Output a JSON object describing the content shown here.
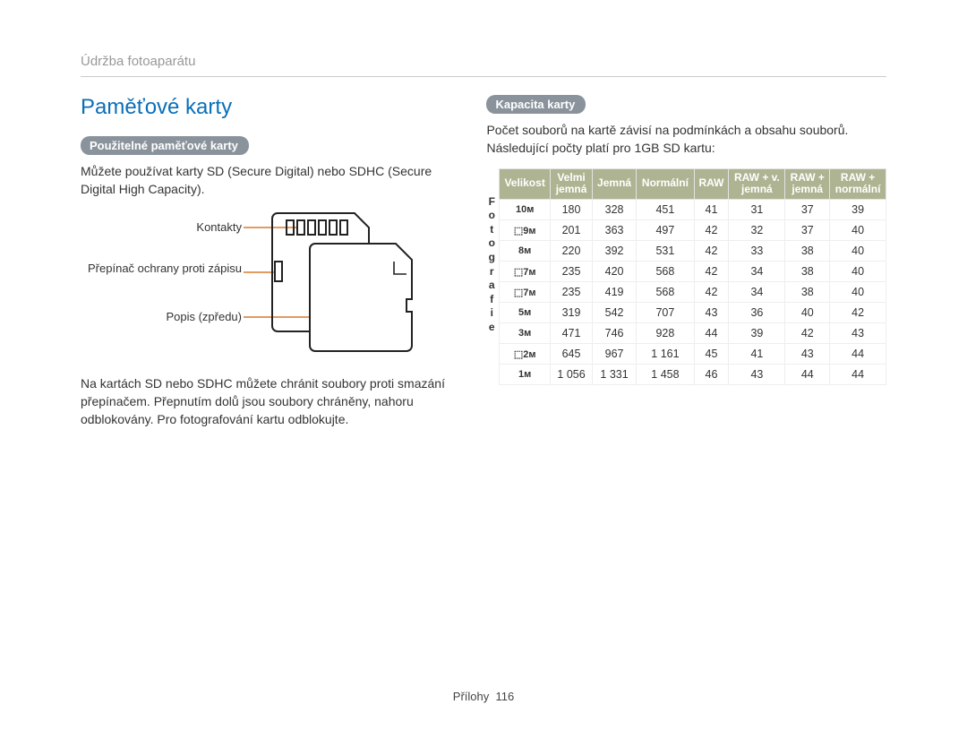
{
  "breadcrumb": "Údržba fotoaparátu",
  "title": "Paměťové karty",
  "left": {
    "pill": "Použitelné paměťové karty",
    "p1": "Můžete používat karty SD (Secure Digital) nebo SDHC (Secure Digital High Capacity).",
    "labels": {
      "l1": "Kontakty",
      "l2": "Přepínač ochrany proti zápisu",
      "l3": "Popis (zpředu)"
    },
    "p2": "Na kartách SD nebo SDHC můžete chránit soubory proti smazání přepínačem. Přepnutím dolů jsou soubory chráněny, nahoru odblokovány. Pro fotografování kartu odblokujte."
  },
  "right": {
    "pill": "Kapacita karty",
    "p1": "Počet souborů na kartě závisí na podmínkách a obsahu souborů. Následující počty platí pro 1GB SD kartu:",
    "vlabel": "Fotografie",
    "headers": [
      "Velikost",
      "Velmi jemná",
      "Jemná",
      "Normální",
      "RAW",
      "RAW + v. jemná",
      "RAW + jemná",
      "RAW + normální"
    ],
    "sizes": [
      "10ᴍ",
      "⬚9ᴍ",
      "8ᴍ",
      "⬚7ᴍ",
      "⬚7ᴍ",
      "5ᴍ",
      "3ᴍ",
      "⬚2ᴍ",
      "1ᴍ"
    ],
    "rows": [
      [
        180,
        328,
        451,
        41,
        31,
        37,
        39
      ],
      [
        201,
        363,
        497,
        42,
        32,
        37,
        40
      ],
      [
        220,
        392,
        531,
        42,
        33,
        38,
        40
      ],
      [
        235,
        420,
        568,
        42,
        34,
        38,
        40
      ],
      [
        235,
        419,
        568,
        42,
        34,
        38,
        40
      ],
      [
        319,
        542,
        707,
        43,
        36,
        40,
        42
      ],
      [
        471,
        746,
        928,
        44,
        39,
        42,
        43
      ],
      [
        645,
        967,
        "1 161",
        45,
        41,
        43,
        44
      ],
      [
        "1 056",
        "1 331",
        "1 458",
        46,
        43,
        44,
        44
      ]
    ]
  },
  "footer": {
    "label": "Přílohy",
    "page": "116"
  },
  "colors": {
    "accent": "#0a6fb8",
    "pill_bg": "#8a939c",
    "table_header_bg": "#aeb492",
    "lead_line": "#d97a2b"
  }
}
